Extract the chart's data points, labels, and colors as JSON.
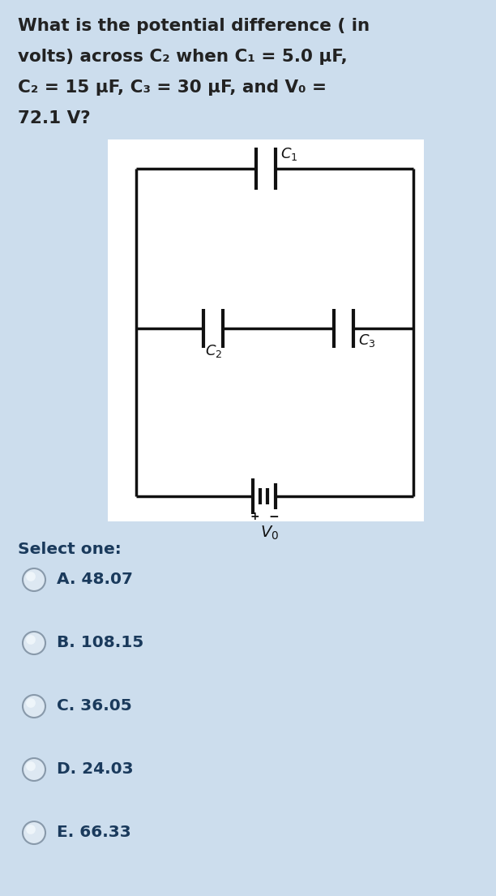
{
  "bg_color": "#ccdded",
  "diagram_bg": "#ffffff",
  "title_lines": [
    "What is the potential difference ( in",
    "volts) across C₂ when C₁ = 5.0 μF,",
    "C₂ = 15 μF, C₃ = 30 μF, and V₀ =",
    "72.1 V?"
  ],
  "select_label": "Select one:",
  "options": [
    "A. 48.07",
    "B. 108.15",
    "C. 36.05",
    "D. 24.03",
    "E. 66.33"
  ],
  "text_color": "#222222",
  "option_color": "#1a3a5c",
  "diagram_line_color": "#111111",
  "title_fontsize": 15.5,
  "select_fontsize": 14.5,
  "option_fontsize": 14.5
}
